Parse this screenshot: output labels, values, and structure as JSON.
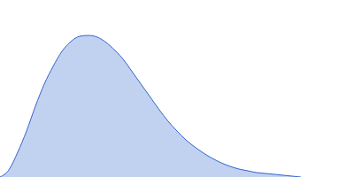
{
  "chart_data": {
    "type": "area",
    "x": [
      0,
      10,
      20,
      30,
      40,
      50,
      60,
      70,
      80,
      90,
      100,
      110,
      120,
      130,
      140,
      150,
      160,
      170,
      180,
      190,
      200,
      210,
      220,
      230,
      240,
      250,
      260,
      270,
      280,
      290,
      300,
      310,
      320,
      330,
      340
    ],
    "values": [
      0,
      8,
      28,
      52,
      80,
      105,
      125,
      142,
      153,
      159,
      160,
      158,
      152,
      143,
      132,
      118,
      104,
      90,
      76,
      63,
      52,
      42,
      34,
      27,
      21,
      16,
      12,
      9,
      7,
      5,
      4,
      3,
      2,
      1,
      0
    ],
    "color": "#3366cc",
    "xlim": [
      0,
      400
    ],
    "ylim": [
      0,
      200
    ],
    "tick_labels": false
  }
}
